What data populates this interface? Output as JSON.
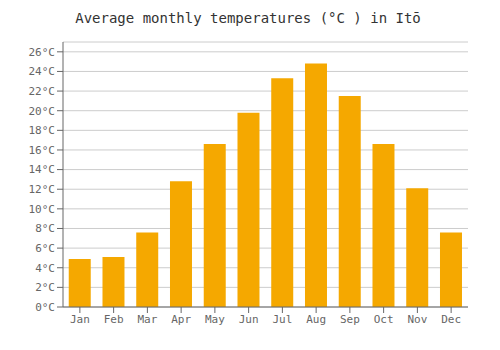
{
  "chart_data": {
    "type": "bar",
    "title": "Average monthly temperatures (°C ) in Itō",
    "categories": [
      "Jan",
      "Feb",
      "Mar",
      "Apr",
      "May",
      "Jun",
      "Jul",
      "Aug",
      "Sep",
      "Oct",
      "Nov",
      "Dec"
    ],
    "values": [
      4.9,
      5.1,
      7.6,
      12.8,
      16.6,
      19.8,
      23.3,
      24.8,
      21.5,
      16.6,
      12.1,
      7.6
    ],
    "color": "#F5A800",
    "ylim": [
      0,
      27
    ],
    "yticks": [
      {
        "value": 0,
        "label": "0°C"
      },
      {
        "value": 2,
        "label": "2°C"
      },
      {
        "value": 4,
        "label": "4°C"
      },
      {
        "value": 6,
        "label": "6°C"
      },
      {
        "value": 8,
        "label": "8°C"
      },
      {
        "value": 10,
        "label": "10°C"
      },
      {
        "value": 12,
        "label": "12°C"
      },
      {
        "value": 14,
        "label": "14°C"
      },
      {
        "value": 16,
        "label": "16°C"
      },
      {
        "value": 18,
        "label": "18°C"
      },
      {
        "value": 20,
        "label": "20°C"
      },
      {
        "value": 22,
        "label": "22°C"
      },
      {
        "value": 24,
        "label": "24°C"
      },
      {
        "value": 26,
        "label": "26°C"
      }
    ],
    "grid": true
  }
}
